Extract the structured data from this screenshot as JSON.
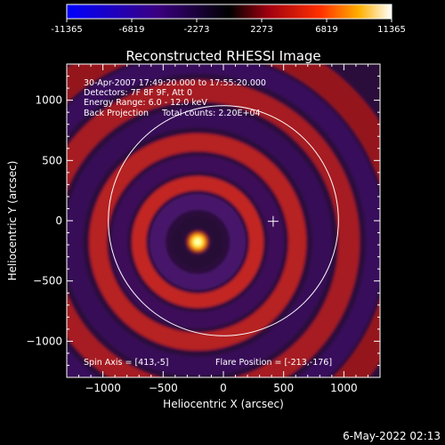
{
  "chart_data": {
    "type": "heatmap",
    "title": "Reconstructed RHESSI Image",
    "xlabel": "Heliocentric X (arcsec)",
    "ylabel": "Heliocentric Y (arcsec)",
    "xlim": [
      -1300,
      1300
    ],
    "ylim": [
      -1300,
      1300
    ],
    "x_ticks": [
      -1000,
      -500,
      0,
      500,
      1000
    ],
    "y_ticks": [
      -1000,
      -500,
      0,
      500,
      1000
    ],
    "colorbar": {
      "ticks": [
        "-11365",
        "-6819",
        "-2273",
        "2273",
        "6819",
        "11365"
      ],
      "range": [
        -11365,
        11365
      ]
    },
    "annotations": [
      "30-Apr-2007 17:49:20.000 to 17:55:20.000",
      "Detectors: 7F 8F 9F, Att 0",
      "Energy Range: 6.0 - 12.0 keV",
      "Back Projection     Total counts: 2.20E+04"
    ],
    "spin_axis_label": "Spin Axis = [413,-5]",
    "flare_position_label": "Flare Position = [-213,-176]",
    "flare_position": [
      -213,
      -176
    ],
    "spin_axis": [
      413,
      -5
    ],
    "solar_disk_radius": 955,
    "date_stamp": "6-May-2022 02:13"
  }
}
